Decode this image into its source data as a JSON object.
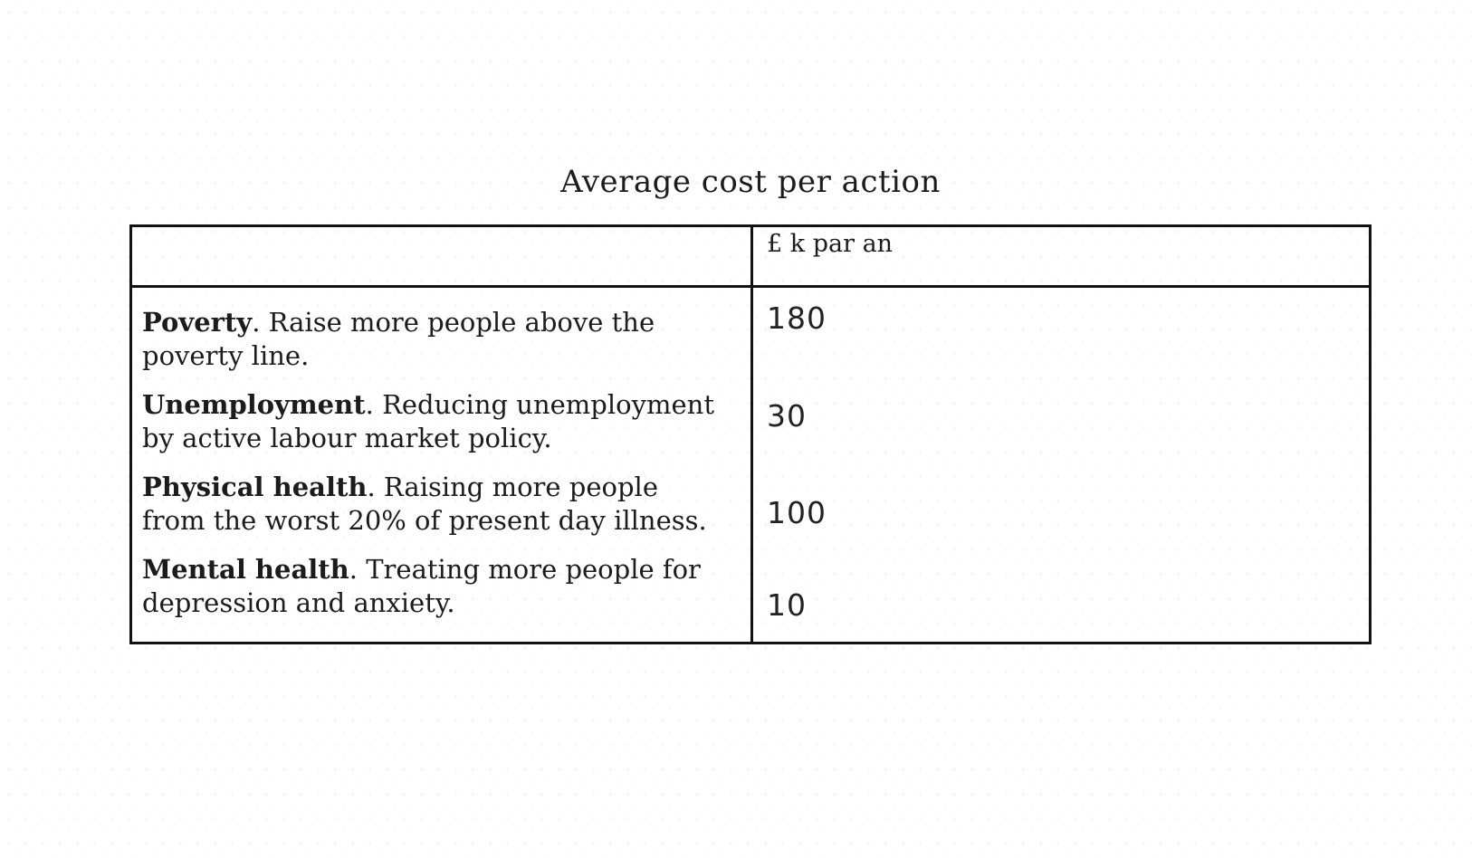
{
  "title": "Average cost per action",
  "table": {
    "unit_header": "£ k par an",
    "term_separator": ". ",
    "rows": [
      {
        "term": "Poverty",
        "description": "Raise more people above the poverty line.",
        "value": "180"
      },
      {
        "term": "Unemployment",
        "description": "Reducing unemployment by active labour market policy.",
        "value": "30"
      },
      {
        "term": "Physical health",
        "description": "Raising more people from the worst 20% of present day illness.",
        "value": "100"
      },
      {
        "term": "Mental health",
        "description": "Treating more people for depression and anxiety.",
        "value": "10"
      }
    ]
  },
  "chart_data": {
    "type": "table",
    "title": "Average cost per action",
    "columns": [
      "",
      "£ k par an"
    ],
    "categories": [
      "Poverty",
      "Unemployment",
      "Physical health",
      "Mental health"
    ],
    "values": [
      180,
      30,
      100,
      10
    ],
    "row_descriptions": [
      "Raise more people above the poverty line.",
      "Reducing unemployment by active labour market policy.",
      "Raising more people from the worst 20% of present day illness.",
      "Treating more people for depression and anxiety."
    ],
    "legend_position": "none",
    "grid": false
  },
  "colors": {
    "text": "#1c1c1c",
    "border": "#121212",
    "background": "#ffffff"
  }
}
